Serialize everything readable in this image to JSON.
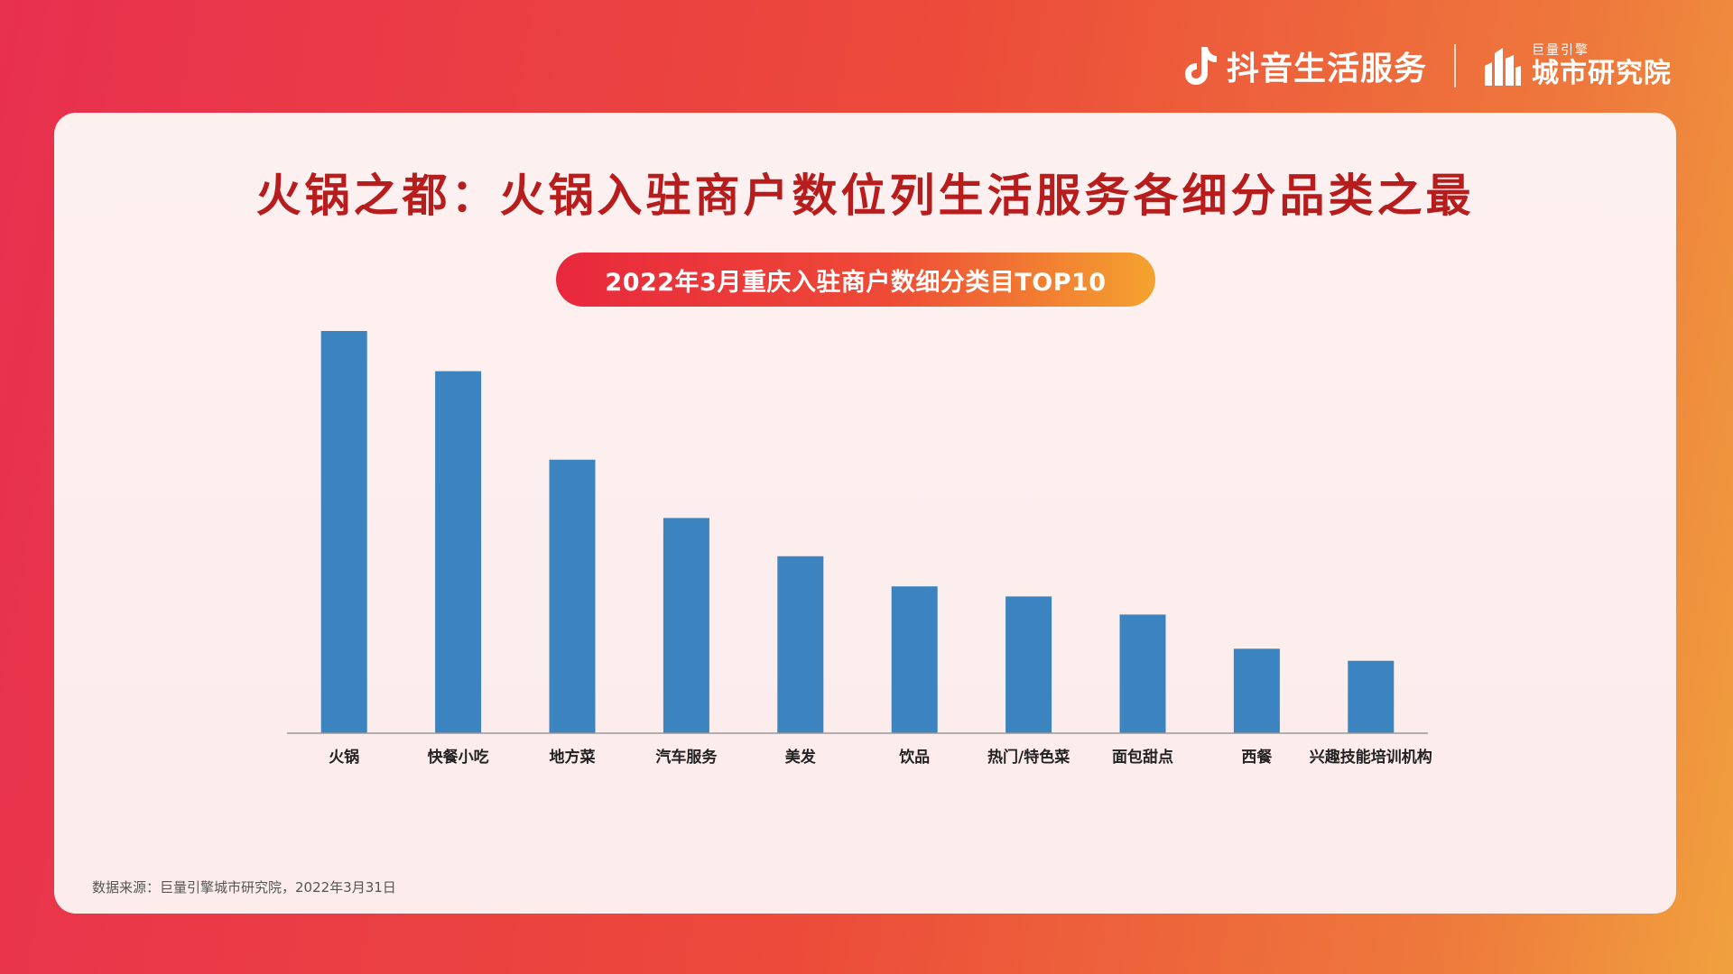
{
  "header": {
    "brand_primary": "抖音生活服务",
    "brand_secondary_small": "巨量引擎",
    "brand_secondary_big": "城市研究院",
    "brand_primary_icon": "music-note-icon",
    "brand_secondary_icon": "city-buildings-icon"
  },
  "page": {
    "title": "火锅之都：火锅入驻商户数位列生活服务各细分品类之最",
    "footnote": "数据来源：巨量引擎城市研究院，2022年3月31日"
  },
  "colors": {
    "bar": "#3b84c0",
    "title": "#b81d1d",
    "axis": "#999999"
  },
  "chart_data": {
    "type": "bar",
    "title": "2022年3月重庆入驻商户数细分类目TOP10",
    "categories": [
      "火锅",
      "快餐小吃",
      "地方菜",
      "汽车服务",
      "美发",
      "饮品",
      "热门/特色菜",
      "面包甜点",
      "西餐",
      "兴趣技能培训机构"
    ],
    "values": [
      100,
      90,
      68,
      53.5,
      44,
      36.5,
      34,
      29.5,
      21,
      18
    ],
    "xlabel": "",
    "ylabel": "",
    "ylim": [
      0,
      100
    ],
    "grid": false,
    "legend": "none"
  }
}
